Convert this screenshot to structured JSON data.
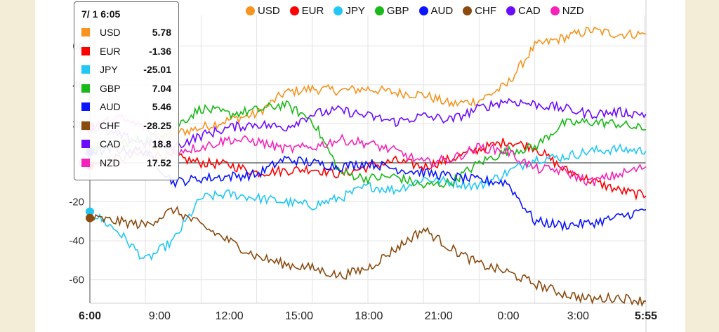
{
  "colors": {
    "USD": "#f7931e",
    "EUR": "#ff0000",
    "JPY": "#22c7f5",
    "GBP": "#18b918",
    "AUD": "#0a14ff",
    "CHF": "#8b4a0e",
    "CAD": "#6a0aff",
    "NZD": "#f522b9"
  },
  "tooltip": {
    "time": "7/ 1 6:05",
    "rows": [
      {
        "name": "USD",
        "value": "5.78"
      },
      {
        "name": "EUR",
        "value": "-1.36"
      },
      {
        "name": "JPY",
        "value": "-25.01"
      },
      {
        "name": "GBP",
        "value": "7.04"
      },
      {
        "name": "AUD",
        "value": "5.46"
      },
      {
        "name": "CHF",
        "value": "-28.25"
      },
      {
        "name": "CAD",
        "value": "18.8"
      },
      {
        "name": "NZD",
        "value": "17.52"
      }
    ]
  },
  "chart_data": {
    "type": "line",
    "xlabel": "",
    "ylabel": "",
    "x_ticks": [
      "6:00",
      "9:00",
      "12:00",
      "15:00",
      "18:00",
      "21:00",
      "0:00",
      "3:00",
      "5:55"
    ],
    "x_ticks_bold": [
      "6:00",
      "5:55"
    ],
    "x_hours": [
      0,
      3,
      6,
      9,
      12,
      15,
      18,
      21,
      24
    ],
    "y_ticks": [
      60,
      40,
      20,
      0,
      -20,
      -40,
      -60
    ],
    "ylim": [
      -72,
      72
    ],
    "xlim_hours": [
      0,
      24
    ],
    "legend_position": "top",
    "grid": true,
    "series": [
      {
        "name": "USD",
        "hours": [
          0,
          1.5,
          3,
          4.5,
          6,
          7.5,
          9,
          10.5,
          12,
          13.5,
          15,
          16.5,
          18,
          19.5,
          21,
          22.5,
          24,
          25.5,
          27,
          28.5,
          30
        ],
        "values": [
          5.8,
          8,
          6,
          15,
          18,
          22,
          25,
          36,
          38,
          37,
          38,
          36,
          35,
          30,
          32,
          40,
          60,
          64,
          68,
          66,
          66
        ]
      },
      {
        "name": "EUR",
        "hours": [
          0,
          1.5,
          3,
          4.5,
          6,
          7.5,
          9,
          10.5,
          12,
          13.5,
          15,
          16.5,
          18,
          19.5,
          21,
          22.5,
          24,
          25.5,
          27,
          28.5,
          30
        ],
        "values": [
          -1.4,
          2,
          5,
          3,
          0,
          -1,
          -5,
          -4,
          -3,
          -6,
          -2,
          1,
          -2,
          2,
          7,
          11,
          8,
          -3,
          -9,
          -14,
          -17
        ]
      },
      {
        "name": "JPY",
        "hours": [
          0,
          1.5,
          3,
          4.5,
          6,
          7.5,
          9,
          10.5,
          12,
          13.5,
          15,
          16.5,
          18,
          19.5,
          21,
          22.5,
          24,
          25.5,
          27,
          28.5,
          30
        ],
        "values": [
          -25,
          -35,
          -50,
          -40,
          -18,
          -16,
          -18,
          -20,
          -22,
          -18,
          -12,
          -14,
          -8,
          -10,
          -12,
          -5,
          2,
          3,
          6,
          7,
          6
        ]
      },
      {
        "name": "GBP",
        "hours": [
          0,
          1.5,
          3,
          4.5,
          6,
          7.5,
          9,
          10.5,
          12,
          13.5,
          15,
          16.5,
          18,
          19.5,
          21,
          22.5,
          24,
          25.5,
          27,
          28.5,
          30
        ],
        "values": [
          7,
          10,
          12,
          18,
          28,
          25,
          27,
          30,
          22,
          -5,
          -8,
          -7,
          -12,
          -10,
          0,
          6,
          8,
          20,
          21,
          20,
          17
        ]
      },
      {
        "name": "AUD",
        "hours": [
          0,
          1.5,
          3,
          4.5,
          6,
          7.5,
          9,
          10.5,
          12,
          13.5,
          15,
          16.5,
          18,
          19.5,
          21,
          22.5,
          24,
          25.5,
          27,
          28.5,
          30
        ],
        "values": [
          5.5,
          7,
          6,
          -10,
          -8,
          -7,
          -6,
          2,
          0,
          -2,
          0,
          -3,
          -5,
          -7,
          -9,
          -10,
          -30,
          -32,
          -31,
          -28,
          -24
        ]
      },
      {
        "name": "CHF",
        "hours": [
          0,
          1.5,
          3,
          4.5,
          6,
          7.5,
          9,
          10.5,
          12,
          13.5,
          15,
          16.5,
          18,
          19.5,
          21,
          22.5,
          24,
          25.5,
          27,
          28.5,
          30
        ],
        "values": [
          -28.3,
          -30,
          -32,
          -24,
          -32,
          -40,
          -48,
          -52,
          -54,
          -58,
          -54,
          -44,
          -34,
          -44,
          -52,
          -56,
          -62,
          -67,
          -70,
          -69,
          -71
        ]
      },
      {
        "name": "CAD",
        "hours": [
          0,
          1.5,
          3,
          4.5,
          6,
          7.5,
          9,
          10.5,
          12,
          13.5,
          15,
          16.5,
          18,
          19.5,
          21,
          22.5,
          24,
          25.5,
          27,
          28.5,
          30
        ],
        "values": [
          18.8,
          14,
          10,
          8,
          14,
          18,
          20,
          18,
          25,
          27,
          24,
          21,
          24,
          22,
          28,
          32,
          30,
          28,
          25,
          26,
          25
        ]
      },
      {
        "name": "NZD",
        "hours": [
          0,
          1.5,
          3,
          4.5,
          6,
          7.5,
          9,
          10.5,
          12,
          13.5,
          15,
          16.5,
          18,
          19.5,
          21,
          22.5,
          24,
          25.5,
          27,
          28.5,
          30
        ],
        "values": [
          17.5,
          23,
          18,
          6,
          8,
          12,
          11,
          7,
          8,
          12,
          10,
          6,
          0,
          2,
          8,
          6,
          -3,
          -4,
          -10,
          -6,
          -2
        ]
      }
    ]
  }
}
